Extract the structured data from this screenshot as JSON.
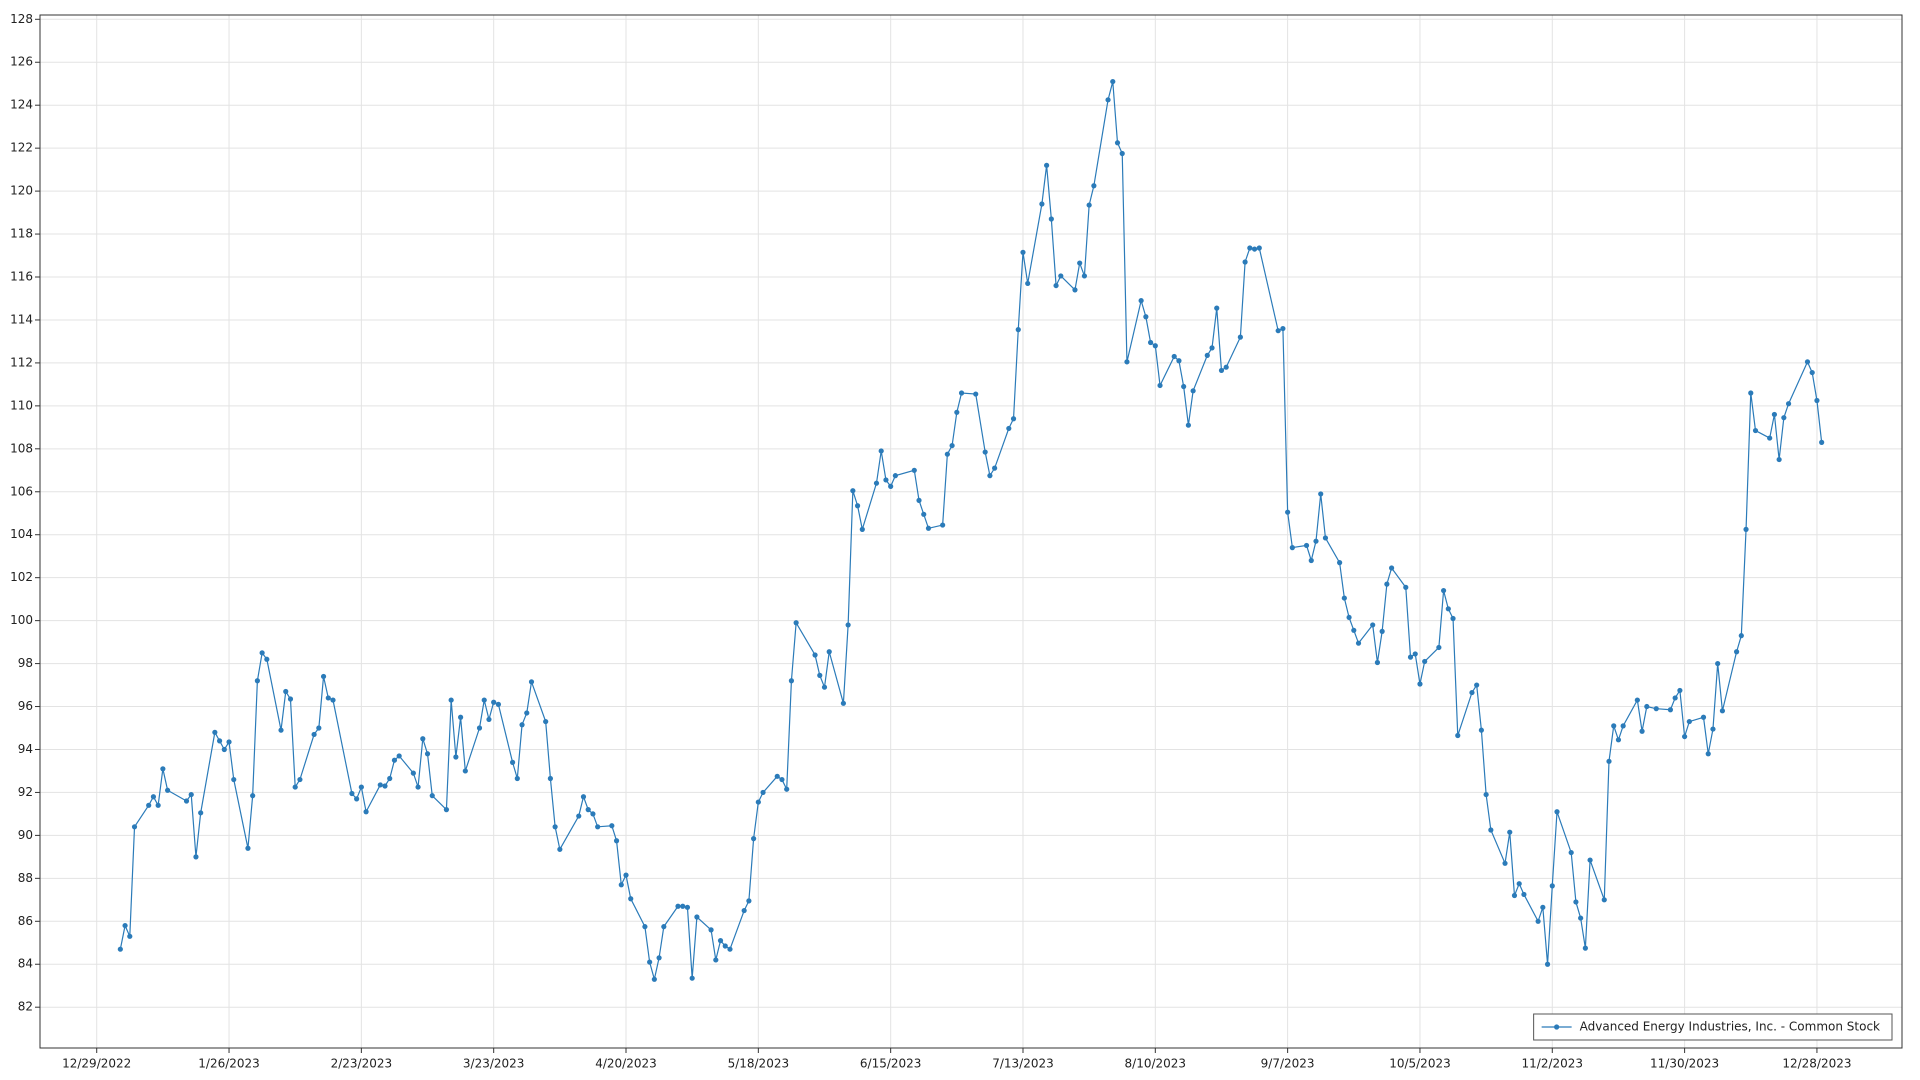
{
  "chart_data": {
    "type": "line",
    "x": [
      "1/3/2023",
      "1/4/2023",
      "1/5/2023",
      "1/6/2023",
      "1/9/2023",
      "1/10/2023",
      "1/11/2023",
      "1/12/2023",
      "1/13/2023",
      "1/17/2023",
      "1/18/2023",
      "1/19/2023",
      "1/20/2023",
      "1/23/2023",
      "1/24/2023",
      "1/25/2023",
      "1/26/2023",
      "1/27/2023",
      "1/30/2023",
      "1/31/2023",
      "2/1/2023",
      "2/2/2023",
      "2/3/2023",
      "2/6/2023",
      "2/7/2023",
      "2/8/2023",
      "2/9/2023",
      "2/10/2023",
      "2/13/2023",
      "2/14/2023",
      "2/15/2023",
      "2/16/2023",
      "2/17/2023",
      "2/21/2023",
      "2/22/2023",
      "2/23/2023",
      "2/24/2023",
      "2/27/2023",
      "2/28/2023",
      "3/1/2023",
      "3/2/2023",
      "3/3/2023",
      "3/6/2023",
      "3/7/2023",
      "3/8/2023",
      "3/9/2023",
      "3/10/2023",
      "3/13/2023",
      "3/14/2023",
      "3/15/2023",
      "3/16/2023",
      "3/17/2023",
      "3/20/2023",
      "3/21/2023",
      "3/22/2023",
      "3/23/2023",
      "3/24/2023",
      "3/27/2023",
      "3/28/2023",
      "3/29/2023",
      "3/30/2023",
      "3/31/2023",
      "4/3/2023",
      "4/4/2023",
      "4/5/2023",
      "4/6/2023",
      "4/10/2023",
      "4/11/2023",
      "4/12/2023",
      "4/13/2023",
      "4/14/2023",
      "4/17/2023",
      "4/18/2023",
      "4/19/2023",
      "4/20/2023",
      "4/21/2023",
      "4/24/2023",
      "4/25/2023",
      "4/26/2023",
      "4/27/2023",
      "4/28/2023",
      "5/1/2023",
      "5/2/2023",
      "5/3/2023",
      "5/4/2023",
      "5/5/2023",
      "5/8/2023",
      "5/9/2023",
      "5/10/2023",
      "5/11/2023",
      "5/12/2023",
      "5/15/2023",
      "5/16/2023",
      "5/17/2023",
      "5/18/2023",
      "5/19/2023",
      "5/22/2023",
      "5/23/2023",
      "5/24/2023",
      "5/25/2023",
      "5/26/2023",
      "5/30/2023",
      "5/31/2023",
      "6/1/2023",
      "6/2/2023",
      "6/5/2023",
      "6/6/2023",
      "6/7/2023",
      "6/8/2023",
      "6/9/2023",
      "6/12/2023",
      "6/13/2023",
      "6/14/2023",
      "6/15/2023",
      "6/16/2023",
      "6/20/2023",
      "6/21/2023",
      "6/22/2023",
      "6/23/2023",
      "6/26/2023",
      "6/27/2023",
      "6/28/2023",
      "6/29/2023",
      "6/30/2023",
      "7/3/2023",
      "7/5/2023",
      "7/6/2023",
      "7/7/2023",
      "7/10/2023",
      "7/11/2023",
      "7/12/2023",
      "7/13/2023",
      "7/14/2023",
      "7/17/2023",
      "7/18/2023",
      "7/19/2023",
      "7/20/2023",
      "7/21/2023",
      "7/24/2023",
      "7/25/2023",
      "7/26/2023",
      "7/27/2023",
      "7/28/2023",
      "7/31/2023",
      "8/1/2023",
      "8/2/2023",
      "8/3/2023",
      "8/4/2023",
      "8/7/2023",
      "8/8/2023",
      "8/9/2023",
      "8/10/2023",
      "8/11/2023",
      "8/14/2023",
      "8/15/2023",
      "8/16/2023",
      "8/17/2023",
      "8/18/2023",
      "8/21/2023",
      "8/22/2023",
      "8/23/2023",
      "8/24/2023",
      "8/25/2023",
      "8/28/2023",
      "8/29/2023",
      "8/30/2023",
      "8/31/2023",
      "9/1/2023",
      "9/5/2023",
      "9/6/2023",
      "9/7/2023",
      "9/8/2023",
      "9/11/2023",
      "9/12/2023",
      "9/13/2023",
      "9/14/2023",
      "9/15/2023",
      "9/18/2023",
      "9/19/2023",
      "9/20/2023",
      "9/21/2023",
      "9/22/2023",
      "9/25/2023",
      "9/26/2023",
      "9/27/2023",
      "9/28/2023",
      "9/29/2023",
      "10/2/2023",
      "10/3/2023",
      "10/4/2023",
      "10/5/2023",
      "10/6/2023",
      "10/9/2023",
      "10/10/2023",
      "10/11/2023",
      "10/12/2023",
      "10/13/2023",
      "10/16/2023",
      "10/17/2023",
      "10/18/2023",
      "10/19/2023",
      "10/20/2023",
      "10/23/2023",
      "10/24/2023",
      "10/25/2023",
      "10/26/2023",
      "10/27/2023",
      "10/30/2023",
      "10/31/2023",
      "11/1/2023",
      "11/2/2023",
      "11/3/2023",
      "11/6/2023",
      "11/7/2023",
      "11/8/2023",
      "11/9/2023",
      "11/10/2023",
      "11/13/2023",
      "11/14/2023",
      "11/15/2023",
      "11/16/2023",
      "11/17/2023",
      "11/20/2023",
      "11/21/2023",
      "11/22/2023",
      "11/24/2023",
      "11/27/2023",
      "11/28/2023",
      "11/29/2023",
      "11/30/2023",
      "12/1/2023",
      "12/4/2023",
      "12/5/2023",
      "12/6/2023",
      "12/7/2023",
      "12/8/2023",
      "12/11/2023",
      "12/12/2023",
      "12/13/2023",
      "12/14/2023",
      "12/15/2023",
      "12/18/2023",
      "12/19/2023",
      "12/20/2023",
      "12/21/2023",
      "12/22/2023",
      "12/26/2023",
      "12/27/2023",
      "12/28/2023",
      "12/29/2023"
    ],
    "series": [
      {
        "name": "Advanced Energy Industries, Inc. - Common Stock",
        "color": "#2b7bb9",
        "values": [
          84.7,
          85.8,
          85.3,
          90.4,
          91.4,
          91.8,
          91.4,
          93.1,
          92.1,
          91.6,
          91.9,
          89.0,
          91.05,
          94.8,
          94.4,
          94.0,
          94.35,
          92.6,
          89.4,
          91.85,
          97.2,
          98.5,
          98.2,
          94.9,
          96.7,
          96.35,
          92.25,
          92.6,
          94.7,
          95.0,
          97.4,
          96.4,
          96.3,
          91.95,
          91.7,
          92.25,
          91.1,
          92.35,
          92.3,
          92.65,
          93.5,
          93.7,
          92.9,
          92.25,
          94.5,
          93.8,
          91.85,
          91.2,
          96.3,
          93.65,
          95.5,
          93.0,
          95.0,
          96.3,
          95.4,
          96.2,
          96.1,
          93.4,
          92.65,
          95.15,
          95.7,
          97.15,
          95.3,
          92.65,
          90.4,
          89.35,
          90.9,
          91.8,
          91.2,
          91.0,
          90.4,
          90.45,
          89.75,
          87.7,
          88.15,
          87.05,
          85.75,
          84.1,
          83.3,
          84.3,
          85.75,
          86.7,
          86.7,
          86.65,
          83.35,
          86.2,
          85.6,
          84.2,
          85.1,
          84.85,
          84.7,
          86.5,
          86.95,
          89.85,
          91.55,
          92.0,
          92.75,
          92.6,
          92.15,
          97.2,
          99.9,
          98.4,
          97.45,
          96.9,
          98.55,
          96.15,
          99.8,
          106.05,
          105.35,
          104.25,
          106.4,
          107.9,
          106.55,
          106.25,
          106.75,
          107.0,
          105.6,
          104.95,
          104.3,
          104.45,
          107.75,
          108.15,
          109.7,
          110.6,
          110.55,
          107.85,
          106.75,
          107.1,
          108.95,
          109.4,
          113.55,
          117.15,
          115.7,
          119.4,
          121.2,
          118.7,
          115.6,
          116.05,
          115.4,
          116.65,
          116.05,
          119.35,
          120.25,
          124.25,
          125.1,
          122.25,
          121.75,
          112.05,
          114.9,
          114.15,
          112.95,
          112.8,
          110.95,
          112.3,
          112.1,
          110.9,
          109.1,
          110.7,
          112.35,
          112.7,
          114.55,
          111.65,
          111.8,
          113.2,
          116.7,
          117.35,
          117.3,
          117.35,
          113.5,
          113.6,
          105.05,
          103.4,
          103.5,
          102.8,
          103.7,
          105.9,
          103.85,
          102.7,
          101.05,
          100.15,
          99.55,
          98.95,
          99.8,
          98.05,
          99.5,
          101.7,
          102.45,
          101.55,
          98.3,
          98.45,
          97.05,
          98.1,
          98.75,
          101.4,
          100.55,
          100.1,
          94.65,
          96.65,
          97.0,
          94.9,
          91.9,
          90.25,
          88.7,
          90.15,
          87.2,
          87.75,
          87.25,
          86.0,
          86.65,
          84.0,
          87.65,
          91.1,
          89.2,
          86.9,
          86.15,
          84.75,
          88.85,
          87.0,
          93.45,
          95.1,
          94.45,
          95.1,
          96.3,
          94.85,
          96.0,
          95.9,
          95.85,
          96.4,
          96.75,
          94.6,
          95.3,
          95.5,
          93.8,
          94.95,
          98.0,
          95.8,
          98.55,
          99.3,
          104.25,
          110.6,
          108.85,
          108.5,
          109.6,
          107.5,
          109.45,
          110.1,
          112.05,
          111.55,
          110.25,
          108.3
        ]
      }
    ],
    "xlim": [
      "12/17/2022",
      "1/15/2024"
    ],
    "xticks": [
      "12/29/2022",
      "1/26/2023",
      "2/23/2023",
      "3/23/2023",
      "4/20/2023",
      "5/18/2023",
      "6/15/2023",
      "7/13/2023",
      "8/10/2023",
      "9/7/2023",
      "10/5/2023",
      "11/2/2023",
      "11/30/2023",
      "12/28/2023"
    ],
    "ylim": [
      80.1,
      128.2
    ],
    "yticks": [
      82,
      84,
      86,
      88,
      90,
      92,
      94,
      96,
      98,
      100,
      102,
      104,
      106,
      108,
      110,
      112,
      114,
      116,
      118,
      120,
      122,
      124,
      126,
      128
    ],
    "grid": true,
    "legend": "lower right"
  }
}
